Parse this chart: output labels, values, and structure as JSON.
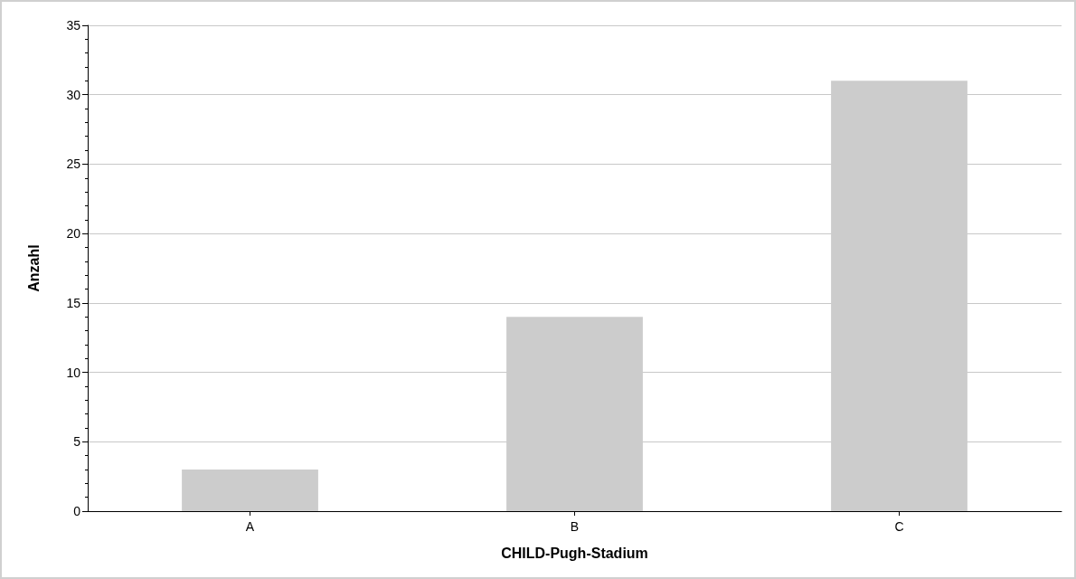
{
  "chart_data": {
    "type": "bar",
    "xlabel": "CHILD-Pugh-Stadium",
    "ylabel": "Anzahl",
    "categories": [
      "A",
      "B",
      "C"
    ],
    "values": [
      3,
      14,
      31
    ],
    "color": "#cccccc",
    "ylim": [
      0,
      35
    ],
    "yticks": [
      0,
      5,
      10,
      15,
      20,
      25,
      30,
      35
    ],
    "grid": "y"
  }
}
